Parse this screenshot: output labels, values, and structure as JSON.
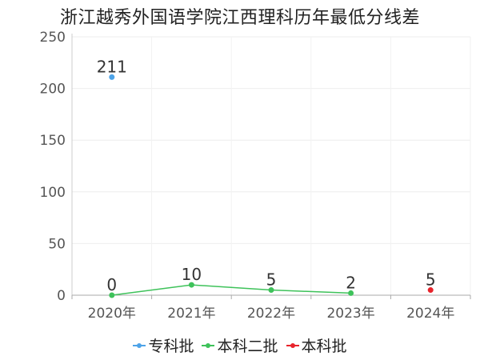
{
  "chart_data": {
    "type": "line",
    "title": "浙江越秀外国语学院江西理科历年最低分线差",
    "categories": [
      "2020年",
      "2021年",
      "2022年",
      "2023年",
      "2024年"
    ],
    "ylim": [
      0,
      250
    ],
    "yticks": [
      0,
      50,
      100,
      150,
      200,
      250
    ],
    "grid": true,
    "legend_position": "bottom",
    "series": [
      {
        "name": "专科批",
        "color": "#4da3e8",
        "values": [
          211,
          null,
          null,
          null,
          null
        ]
      },
      {
        "name": "本科二批",
        "color": "#3ec25a",
        "values": [
          0,
          10,
          5,
          2,
          null
        ]
      },
      {
        "name": "本科批",
        "color": "#e8232b",
        "values": [
          null,
          null,
          null,
          null,
          5
        ]
      }
    ],
    "data_labels": [
      {
        "category": "2020年",
        "value": 211,
        "text": "211"
      },
      {
        "category": "2020年",
        "value": 0,
        "text": "0"
      },
      {
        "category": "2021年",
        "value": 10,
        "text": "10"
      },
      {
        "category": "2022年",
        "value": 5,
        "text": "5"
      },
      {
        "category": "2023年",
        "value": 2,
        "text": "2"
      },
      {
        "category": "2024年",
        "value": 5,
        "text": "5"
      }
    ]
  }
}
